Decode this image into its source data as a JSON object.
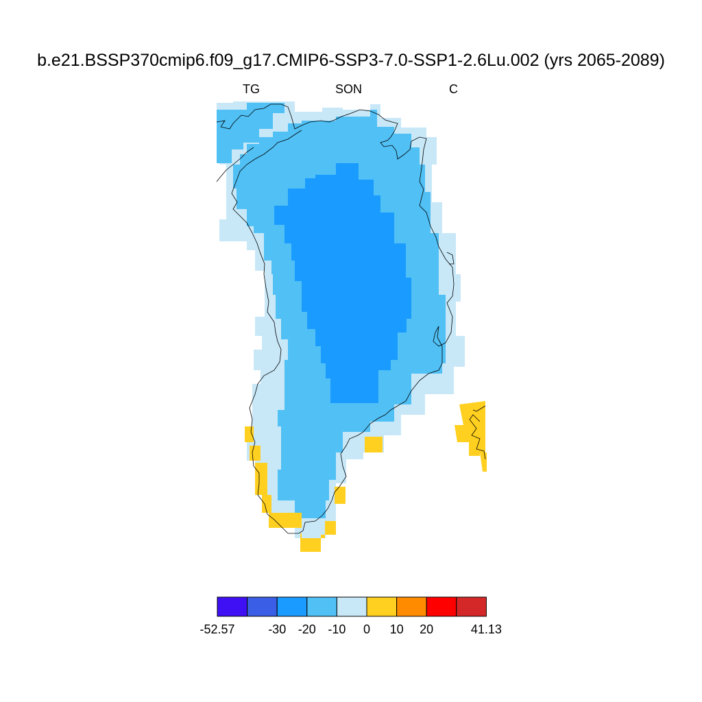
{
  "title": "b.e21.BSSP370cmip6.f09_g17.CMIP6-SSP3-7.0-SSP1-2.6Lu.002 (yrs 2065-2089)",
  "subtitle_left": "TG",
  "subtitle_center": "SON",
  "subtitle_right": "C",
  "colorbar": {
    "colors": [
      "#4010f5",
      "#3a5ee6",
      "#1a9bff",
      "#50c0f5",
      "#c8e8f8",
      "#ffd020",
      "#ff8c00",
      "#ff0000",
      "#d42828"
    ],
    "tick_labels": [
      "-52.57",
      "-30",
      "-20",
      "-10",
      "0",
      "10",
      "20",
      "41.13"
    ],
    "tick_boundary_index": [
      0,
      2,
      3,
      4,
      5,
      6,
      7,
      9
    ]
  }
}
